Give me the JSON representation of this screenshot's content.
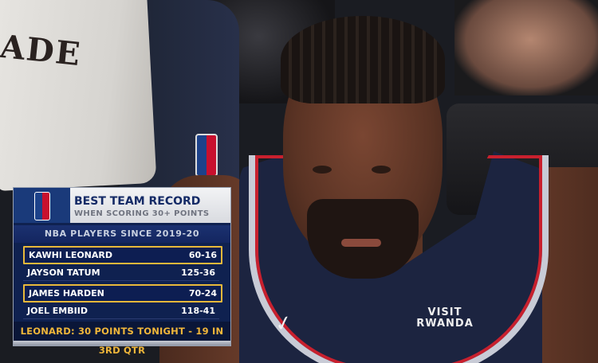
{
  "scene": {
    "towel_text": "ADE",
    "sponsor": [
      "VISIT",
      "RWANDA"
    ],
    "jersey_color": "#1c2440"
  },
  "graphic": {
    "title": "BEST TEAM RECORD",
    "subtitle": "WHEN SCORING 30+ POINTS",
    "section": "NBA PLAYERS SINCE 2019-20",
    "rows": [
      {
        "name": "KAWHI LEONARD",
        "record": "60-16",
        "highlighted": true
      },
      {
        "name": "JAYSON TATUM",
        "record": "125-36",
        "highlighted": false
      },
      {
        "name": "JAMES HARDEN",
        "record": "70-24",
        "highlighted": true
      },
      {
        "name": "JOEL EMBIID",
        "record": "118-41",
        "highlighted": false
      }
    ],
    "footer": "LEONARD: 30 POINTS TONIGHT - 19 IN 3RD QTR",
    "colors": {
      "navy": "#0f2150",
      "highlight": "#e8b83a",
      "footer_text": "#f0b63a"
    }
  }
}
